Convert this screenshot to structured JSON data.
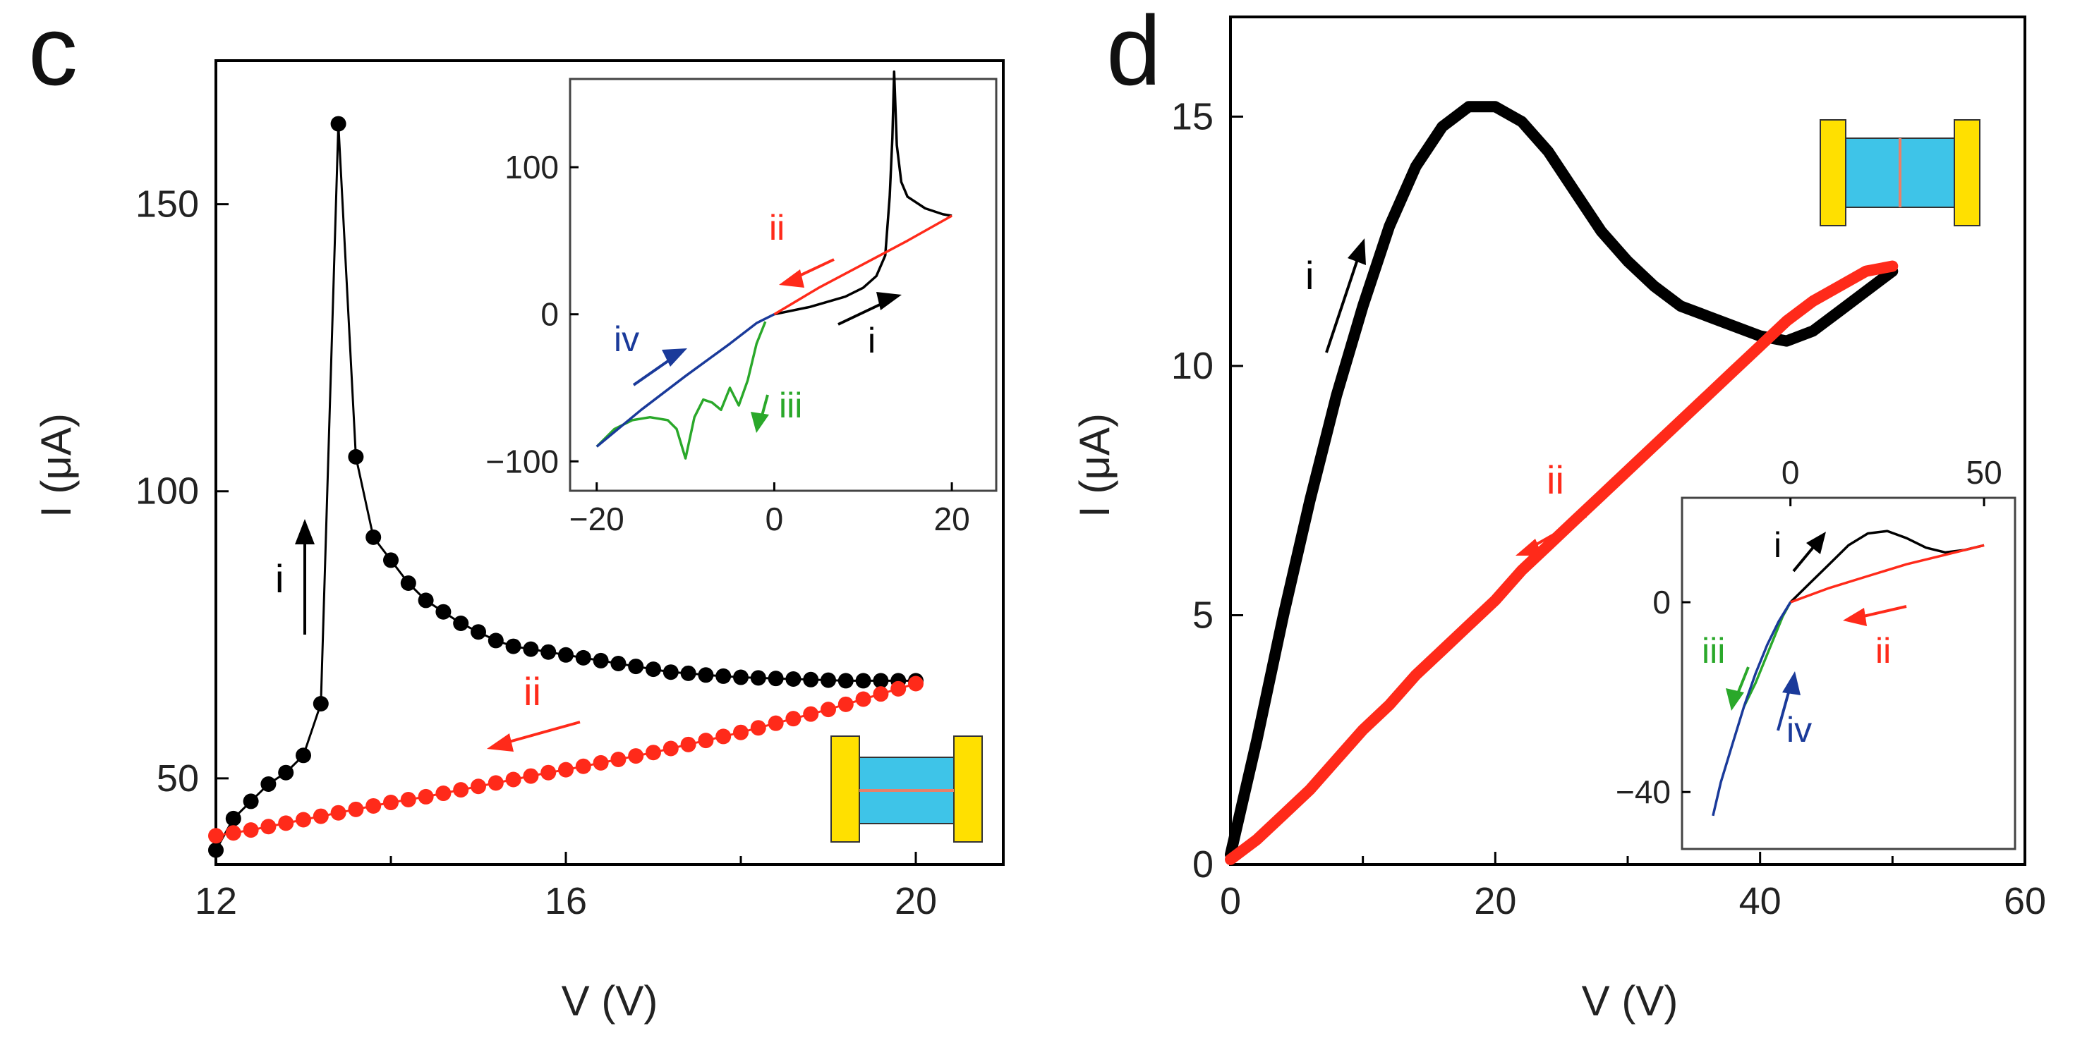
{
  "chart_data": [
    {
      "panel": "c",
      "type": "scatter",
      "title": "c",
      "xlabel": "V (V)",
      "ylabel": "I (μA)",
      "xlim": [
        12,
        21
      ],
      "ylim": [
        35,
        175
      ],
      "xticks": [
        12,
        16,
        20
      ],
      "yticks": [
        50,
        100,
        150
      ],
      "series": [
        {
          "name": "i",
          "color": "#000000",
          "marker": "dot",
          "x": [
            12.0,
            12.2,
            12.4,
            12.6,
            12.8,
            13.0,
            13.2,
            13.4,
            13.6,
            13.8,
            14.0,
            14.2,
            14.4,
            14.6,
            14.8,
            15.0,
            15.2,
            15.4,
            15.6,
            15.8,
            16.0,
            16.2,
            16.4,
            16.6,
            16.8,
            17.0,
            17.2,
            17.4,
            17.6,
            17.8,
            18.0,
            18.2,
            18.4,
            18.6,
            18.8,
            19.0,
            19.2,
            19.4,
            19.6,
            19.8,
            20.0
          ],
          "y": [
            37.5,
            43,
            46,
            49,
            51,
            54,
            63,
            164,
            106,
            92,
            88,
            84,
            81,
            79,
            77,
            75.5,
            74,
            73,
            72.5,
            72,
            71.5,
            71,
            70.5,
            70,
            69.5,
            69,
            68.5,
            68.3,
            68,
            67.8,
            67.6,
            67.5,
            67.4,
            67.3,
            67.2,
            67.1,
            67,
            67,
            67,
            67,
            67
          ]
        },
        {
          "name": "ii",
          "color": "#ff2a1a",
          "marker": "dot",
          "x": [
            20.0,
            19.8,
            19.6,
            19.4,
            19.2,
            19.0,
            18.8,
            18.6,
            18.4,
            18.2,
            18.0,
            17.8,
            17.6,
            17.4,
            17.2,
            17.0,
            16.8,
            16.6,
            16.4,
            16.2,
            16.0,
            15.8,
            15.6,
            15.4,
            15.2,
            15.0,
            14.8,
            14.6,
            14.4,
            14.2,
            14.0,
            13.8,
            13.6,
            13.4,
            13.2,
            13.0,
            12.8,
            12.6,
            12.4,
            12.2,
            12.0
          ],
          "y": [
            66.5,
            65.6,
            64.7,
            63.8,
            62.9,
            62.0,
            61.2,
            60.4,
            59.6,
            58.8,
            58.0,
            57.3,
            56.6,
            55.9,
            55.2,
            54.5,
            53.9,
            53.3,
            52.7,
            52.1,
            51.5,
            51.0,
            50.4,
            49.8,
            49.2,
            48.6,
            48.0,
            47.4,
            46.8,
            46.3,
            45.8,
            45.2,
            44.6,
            44.0,
            43.4,
            42.8,
            42.2,
            41.6,
            41.0,
            40.5,
            40.0
          ]
        }
      ],
      "annotations": [
        {
          "text": "i",
          "color": "#000000"
        },
        {
          "text": "ii",
          "color": "#ff2a1a"
        }
      ],
      "inset": {
        "xlim": [
          -23,
          25
        ],
        "ylim": [
          -120,
          160
        ],
        "xticks": [
          -20,
          0,
          20
        ],
        "xtick_labels": [
          "−20",
          "0",
          "20"
        ],
        "yticks": [
          -100,
          0,
          100
        ],
        "ytick_labels": [
          "−100",
          "0",
          "100"
        ],
        "series": [
          {
            "name": "i",
            "color": "#000000",
            "x": [
              0,
              4,
              8,
              10,
              11.5,
              12.5,
              13.0,
              13.3,
              13.5,
              13.8,
              14.3,
              15,
              17,
              19,
              20
            ],
            "y": [
              0,
              5,
              12,
              18,
              26,
              40,
              80,
              120,
              165,
              115,
              90,
              80,
              72,
              68,
              67
            ]
          },
          {
            "name": "ii",
            "color": "#ff2a1a",
            "x": [
              20,
              15,
              10,
              5,
              0
            ],
            "y": [
              67,
              50,
              34,
              18,
              0
            ]
          },
          {
            "name": "iii",
            "color": "#2aa82a",
            "x": [
              -1,
              -2,
              -3,
              -4,
              -5,
              -6,
              -7,
              -8,
              -9,
              -10,
              -11,
              -12,
              -14,
              -16,
              -18,
              -20
            ],
            "y": [
              -5,
              -20,
              -45,
              -62,
              -50,
              -65,
              -60,
              -58,
              -70,
              -98,
              -78,
              -72,
              -70,
              -72,
              -78,
              -90
            ]
          },
          {
            "name": "iv",
            "color": "#1a3a9a",
            "x": [
              -20,
              -15,
              -10,
              -5,
              -2,
              0
            ],
            "y": [
              -90,
              -65,
              -42,
              -20,
              -6,
              0
            ]
          }
        ],
        "annotations": [
          {
            "text": "i",
            "color": "#000000"
          },
          {
            "text": "ii",
            "color": "#ff2a1a"
          },
          {
            "text": "iii",
            "color": "#2aa82a"
          },
          {
            "text": "iv",
            "color": "#1a3a9a"
          }
        ]
      }
    },
    {
      "panel": "d",
      "type": "line",
      "title": "d",
      "xlabel": "V (V)",
      "ylabel": "I (μA)",
      "xlim": [
        0,
        60
      ],
      "ylim": [
        0,
        17
      ],
      "xticks": [
        0,
        20,
        40,
        60
      ],
      "yticks": [
        0,
        5,
        10,
        15
      ],
      "series": [
        {
          "name": "i",
          "color": "#000000",
          "x": [
            0,
            2,
            4,
            6,
            8,
            10,
            12,
            14,
            16,
            18,
            20,
            22,
            24,
            26,
            28,
            30,
            32,
            34,
            36,
            38,
            40,
            42,
            44,
            46,
            48,
            50
          ],
          "y": [
            0.2,
            2.5,
            5.0,
            7.3,
            9.4,
            11.2,
            12.8,
            14.0,
            14.8,
            15.2,
            15.2,
            14.9,
            14.3,
            13.5,
            12.7,
            12.1,
            11.6,
            11.2,
            11.0,
            10.8,
            10.6,
            10.5,
            10.7,
            11.1,
            11.5,
            11.9
          ]
        },
        {
          "name": "ii",
          "color": "#ff2a1a",
          "x": [
            50,
            48,
            46,
            44,
            42,
            40,
            38,
            36,
            34,
            32,
            30,
            28,
            26,
            24,
            22,
            20,
            18,
            16,
            14,
            12,
            10,
            8,
            6,
            4,
            2,
            0
          ],
          "y": [
            12.0,
            11.9,
            11.6,
            11.3,
            10.9,
            10.4,
            9.9,
            9.4,
            8.9,
            8.4,
            7.9,
            7.4,
            6.9,
            6.4,
            5.9,
            5.3,
            4.8,
            4.3,
            3.8,
            3.2,
            2.7,
            2.1,
            1.5,
            1.0,
            0.5,
            0.1
          ]
        }
      ],
      "annotations": [
        {
          "text": "i",
          "color": "#000000"
        },
        {
          "text": "ii",
          "color": "#ff2a1a"
        }
      ],
      "inset": {
        "xlim": [
          -28,
          58
        ],
        "ylim": [
          -52,
          22
        ],
        "xticks": [
          0,
          50
        ],
        "xtick_labels": [
          "0",
          "50"
        ],
        "yticks": [
          -40,
          0
        ],
        "ytick_labels": [
          "−40",
          "0"
        ],
        "series": [
          {
            "name": "i",
            "color": "#000000",
            "x": [
              0,
              5,
              10,
              15,
              20,
              25,
              30,
              35,
              40,
              45,
              50
            ],
            "y": [
              0,
              4,
              8,
              12,
              14.5,
              15,
              13.5,
              11.5,
              10.5,
              11,
              12
            ]
          },
          {
            "name": "ii",
            "color": "#ff2a1a",
            "x": [
              50,
              40,
              30,
              20,
              10,
              0
            ],
            "y": [
              12,
              10,
              8,
              5.5,
              3,
              0
            ]
          },
          {
            "name": "iii",
            "color": "#2aa82a",
            "x": [
              0,
              -2,
              -4,
              -6,
              -9,
              -12
            ],
            "y": [
              0,
              -3,
              -7,
              -11,
              -17,
              -22
            ]
          },
          {
            "name": "iv",
            "color": "#1a3a9a",
            "x": [
              0,
              -3,
              -6,
              -9,
              -12,
              -15,
              -18,
              -20
            ],
            "y": [
              0,
              -4,
              -9,
              -15,
              -22,
              -30,
              -38,
              -45
            ]
          }
        ],
        "annotations": [
          {
            "text": "i",
            "color": "#000000"
          },
          {
            "text": "ii",
            "color": "#ff2a1a"
          },
          {
            "text": "iii",
            "color": "#2aa82a"
          },
          {
            "text": "iv",
            "color": "#1a3a9a"
          }
        ]
      }
    }
  ],
  "device_icon": {
    "electrode_color": "#ffe000",
    "channel_color": "#3ec4e8",
    "line_color": "#e8806a"
  }
}
